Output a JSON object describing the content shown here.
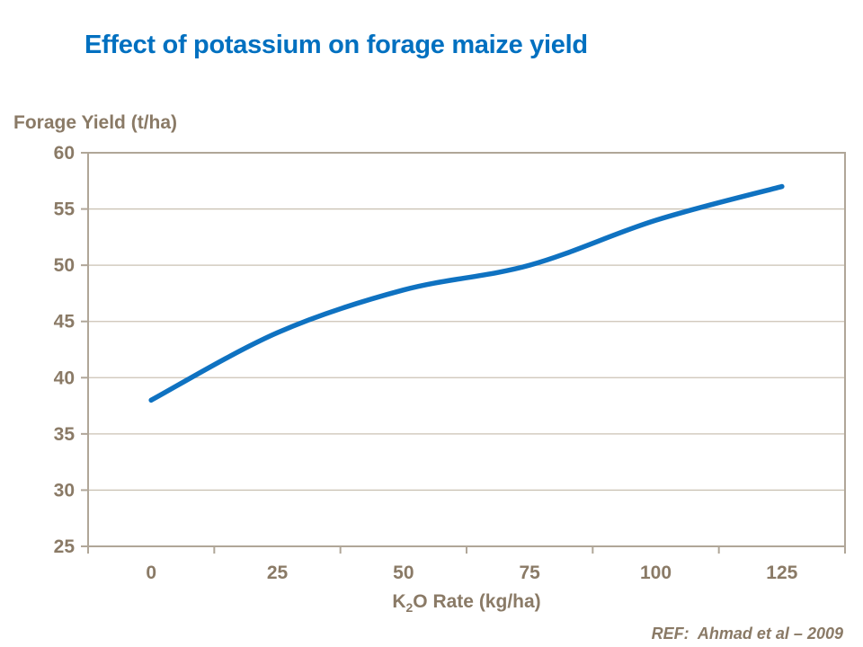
{
  "slide": {
    "title": "Effect of potassium on forage maize yield",
    "ref_text": "REF:  Ahmad et al – 2009"
  },
  "labels": {
    "y_axis_title": "Forage Yield (t/ha)",
    "x_axis_title_pre": "K",
    "x_axis_title_sub": "2",
    "x_axis_title_post": "O Rate (kg/ha)"
  },
  "chart_data": {
    "type": "line",
    "title": "Effect of potassium on forage maize yield",
    "x": [
      0,
      25,
      50,
      75,
      100,
      125
    ],
    "values": [
      38,
      44,
      47.8,
      50,
      54,
      57
    ],
    "xlabel": "K₂O Rate (kg/ha)",
    "ylabel": "Forage Yield (t/ha)",
    "ylim": [
      25,
      60
    ],
    "y_ticks": [
      25,
      30,
      35,
      40,
      45,
      50,
      55,
      60
    ],
    "x_tick_labels": [
      "0",
      "25",
      "50",
      "75",
      "100",
      "125"
    ],
    "grid": "horizontal",
    "legend": "none",
    "smoothed": true
  },
  "colors": {
    "title_blue": "#0070C0",
    "line_blue": "#0F72C1",
    "text_brown": "#8A7A66",
    "gridline": "#CBC2B4",
    "axis_border": "#B0A698",
    "background": "#FFFFFF"
  }
}
